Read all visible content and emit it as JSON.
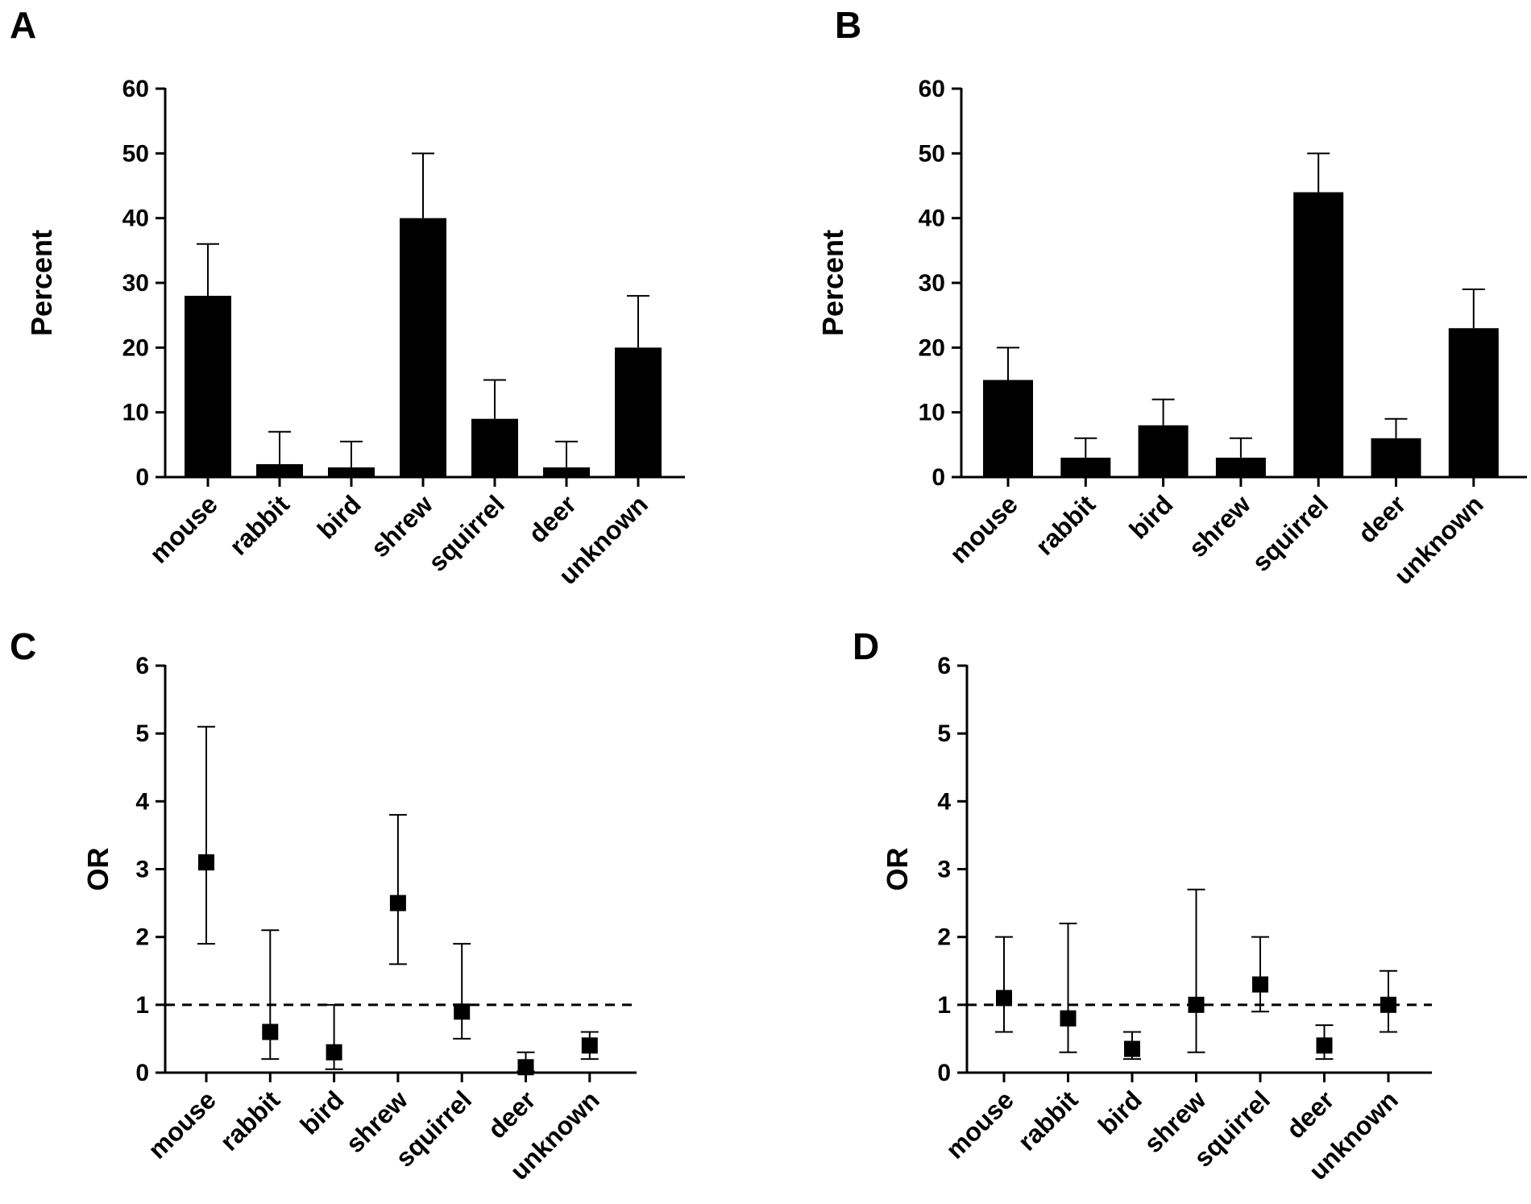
{
  "figure": {
    "colors": {
      "ink": "#000000",
      "background": "#ffffff"
    }
  },
  "chart_data": [
    {
      "panel": "A",
      "type": "bar",
      "title": "",
      "xlabel": "",
      "ylabel": "Percent",
      "ylim": [
        0,
        60
      ],
      "yticks": [
        0,
        10,
        20,
        30,
        40,
        50,
        60
      ],
      "grid": false,
      "categories": [
        "mouse",
        "rabbit",
        "bird",
        "shrew",
        "squirrel",
        "deer",
        "unknown"
      ],
      "values": [
        28,
        2,
        1.5,
        40,
        9,
        1.5,
        20
      ],
      "error_upper": [
        36,
        7,
        5.5,
        50,
        15,
        5.5,
        28
      ]
    },
    {
      "panel": "B",
      "type": "bar",
      "title": "",
      "xlabel": "",
      "ylabel": "Percent",
      "ylim": [
        0,
        60
      ],
      "yticks": [
        0,
        10,
        20,
        30,
        40,
        50,
        60
      ],
      "grid": false,
      "categories": [
        "mouse",
        "rabbit",
        "bird",
        "shrew",
        "squirrel",
        "deer",
        "unknown"
      ],
      "values": [
        15,
        3,
        8,
        3,
        44,
        6,
        23
      ],
      "error_upper": [
        20,
        6,
        12,
        6,
        50,
        9,
        29
      ]
    },
    {
      "panel": "C",
      "type": "scatter",
      "title": "",
      "xlabel": "",
      "ylabel": "OR",
      "ylim": [
        0,
        6
      ],
      "yticks": [
        0,
        1,
        2,
        3,
        4,
        5,
        6
      ],
      "grid": false,
      "reference_line": 1,
      "categories": [
        "mouse",
        "rabbit",
        "bird",
        "shrew",
        "squirrel",
        "deer",
        "unknown"
      ],
      "values": [
        3.1,
        0.6,
        0.3,
        2.5,
        0.9,
        0.08,
        0.4
      ],
      "ci_low": [
        1.9,
        0.2,
        0.05,
        1.6,
        0.5,
        0.02,
        0.2
      ],
      "ci_high": [
        5.1,
        2.1,
        1.0,
        3.8,
        1.9,
        0.3,
        0.6
      ]
    },
    {
      "panel": "D",
      "type": "scatter",
      "title": "",
      "xlabel": "",
      "ylabel": "OR",
      "ylim": [
        0,
        6
      ],
      "yticks": [
        0,
        1,
        2,
        3,
        4,
        5,
        6
      ],
      "grid": false,
      "reference_line": 1,
      "categories": [
        "mouse",
        "rabbit",
        "bird",
        "shrew",
        "squirrel",
        "deer",
        "unknown"
      ],
      "values": [
        1.1,
        0.8,
        0.35,
        1.0,
        1.3,
        0.4,
        1.0
      ],
      "ci_low": [
        0.6,
        0.3,
        0.2,
        0.3,
        0.9,
        0.2,
        0.6
      ],
      "ci_high": [
        2.0,
        2.2,
        0.6,
        2.7,
        2.0,
        0.7,
        1.5
      ]
    }
  ]
}
